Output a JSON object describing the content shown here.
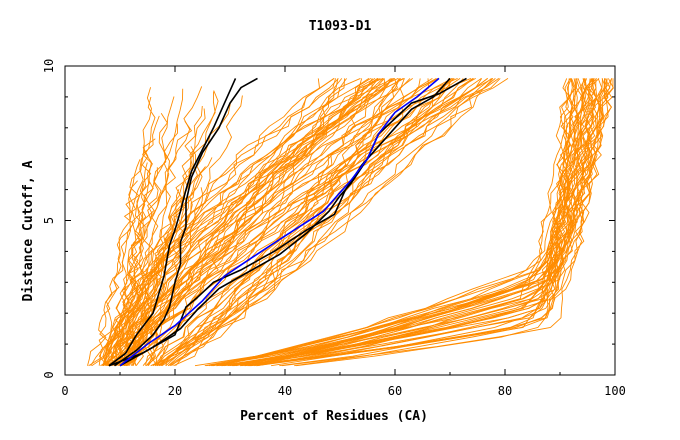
{
  "chart_data": {
    "type": "line",
    "title": "T1093-D1",
    "xlabel": "Percent of Residues (CA)",
    "ylabel": "Distance Cutoff, A",
    "xlim": [
      0,
      100
    ],
    "ylim": [
      0,
      10
    ],
    "xticks": [
      0,
      20,
      40,
      60,
      80,
      100
    ],
    "yticks": [
      0,
      5,
      10
    ],
    "grid": false,
    "colors": {
      "models": "#ff8c00",
      "reference": "#000000",
      "highlight": "#0000ff",
      "axes": "#000000",
      "background": "#ffffff"
    },
    "series": [
      {
        "role": "reference",
        "color": "#000000",
        "points": [
          [
            8,
            0.3
          ],
          [
            11,
            0.7
          ],
          [
            13,
            1.3
          ],
          [
            16,
            2
          ],
          [
            17,
            2.6
          ],
          [
            18,
            3.2
          ],
          [
            19,
            4.2
          ],
          [
            20,
            4.7
          ],
          [
            21,
            5.3
          ],
          [
            22,
            6
          ],
          [
            23,
            6.6
          ],
          [
            25,
            7.3
          ],
          [
            27,
            8
          ],
          [
            29,
            8.8
          ],
          [
            31,
            9.6
          ]
        ]
      },
      {
        "role": "reference",
        "color": "#000000",
        "points": [
          [
            9,
            0.3
          ],
          [
            13,
            0.8
          ],
          [
            16,
            1.3
          ],
          [
            18,
            1.8
          ],
          [
            19,
            2.2
          ],
          [
            20,
            3
          ],
          [
            21,
            3.6
          ],
          [
            21,
            4.3
          ],
          [
            22,
            4.8
          ],
          [
            22,
            5.6
          ],
          [
            23,
            6.4
          ],
          [
            25,
            7.2
          ],
          [
            28,
            8
          ],
          [
            30,
            8.8
          ],
          [
            32,
            9.3
          ],
          [
            35,
            9.6
          ]
        ]
      },
      {
        "role": "reference",
        "color": "#000000",
        "points": [
          [
            8,
            0.3
          ],
          [
            14,
            0.7
          ],
          [
            20,
            1.3
          ],
          [
            22,
            2.2
          ],
          [
            24,
            2.5
          ],
          [
            27,
            3
          ],
          [
            32,
            3.4
          ],
          [
            38,
            4
          ],
          [
            44,
            4.7
          ],
          [
            49,
            5.2
          ],
          [
            51,
            6
          ],
          [
            54,
            6.8
          ],
          [
            57,
            7.4
          ],
          [
            60,
            8
          ],
          [
            63,
            8.6
          ],
          [
            67,
            9
          ],
          [
            70,
            9.6
          ]
        ]
      },
      {
        "role": "reference",
        "color": "#000000",
        "points": [
          [
            10,
            0.3
          ],
          [
            16,
            0.9
          ],
          [
            21,
            1.5
          ],
          [
            24,
            2.1
          ],
          [
            28,
            2.8
          ],
          [
            33,
            3.3
          ],
          [
            39,
            3.9
          ],
          [
            44,
            4.6
          ],
          [
            48,
            5.3
          ],
          [
            50,
            5.8
          ],
          [
            52,
            6.2
          ],
          [
            55,
            7
          ],
          [
            57,
            7.8
          ],
          [
            60,
            8.3
          ],
          [
            63,
            8.8
          ],
          [
            68,
            9.1
          ],
          [
            73,
            9.6
          ]
        ]
      },
      {
        "role": "highlight",
        "color": "#0000ff",
        "points": [
          [
            10,
            0.3
          ],
          [
            15,
            1
          ],
          [
            20,
            1.6
          ],
          [
            25,
            2.4
          ],
          [
            29,
            3.2
          ],
          [
            34,
            3.8
          ],
          [
            40,
            4.5
          ],
          [
            47,
            5.3
          ],
          [
            52,
            6.3
          ],
          [
            55,
            7
          ],
          [
            57,
            7.8
          ],
          [
            60,
            8.5
          ],
          [
            64,
            9
          ],
          [
            68,
            9.6
          ]
        ]
      }
    ]
  }
}
